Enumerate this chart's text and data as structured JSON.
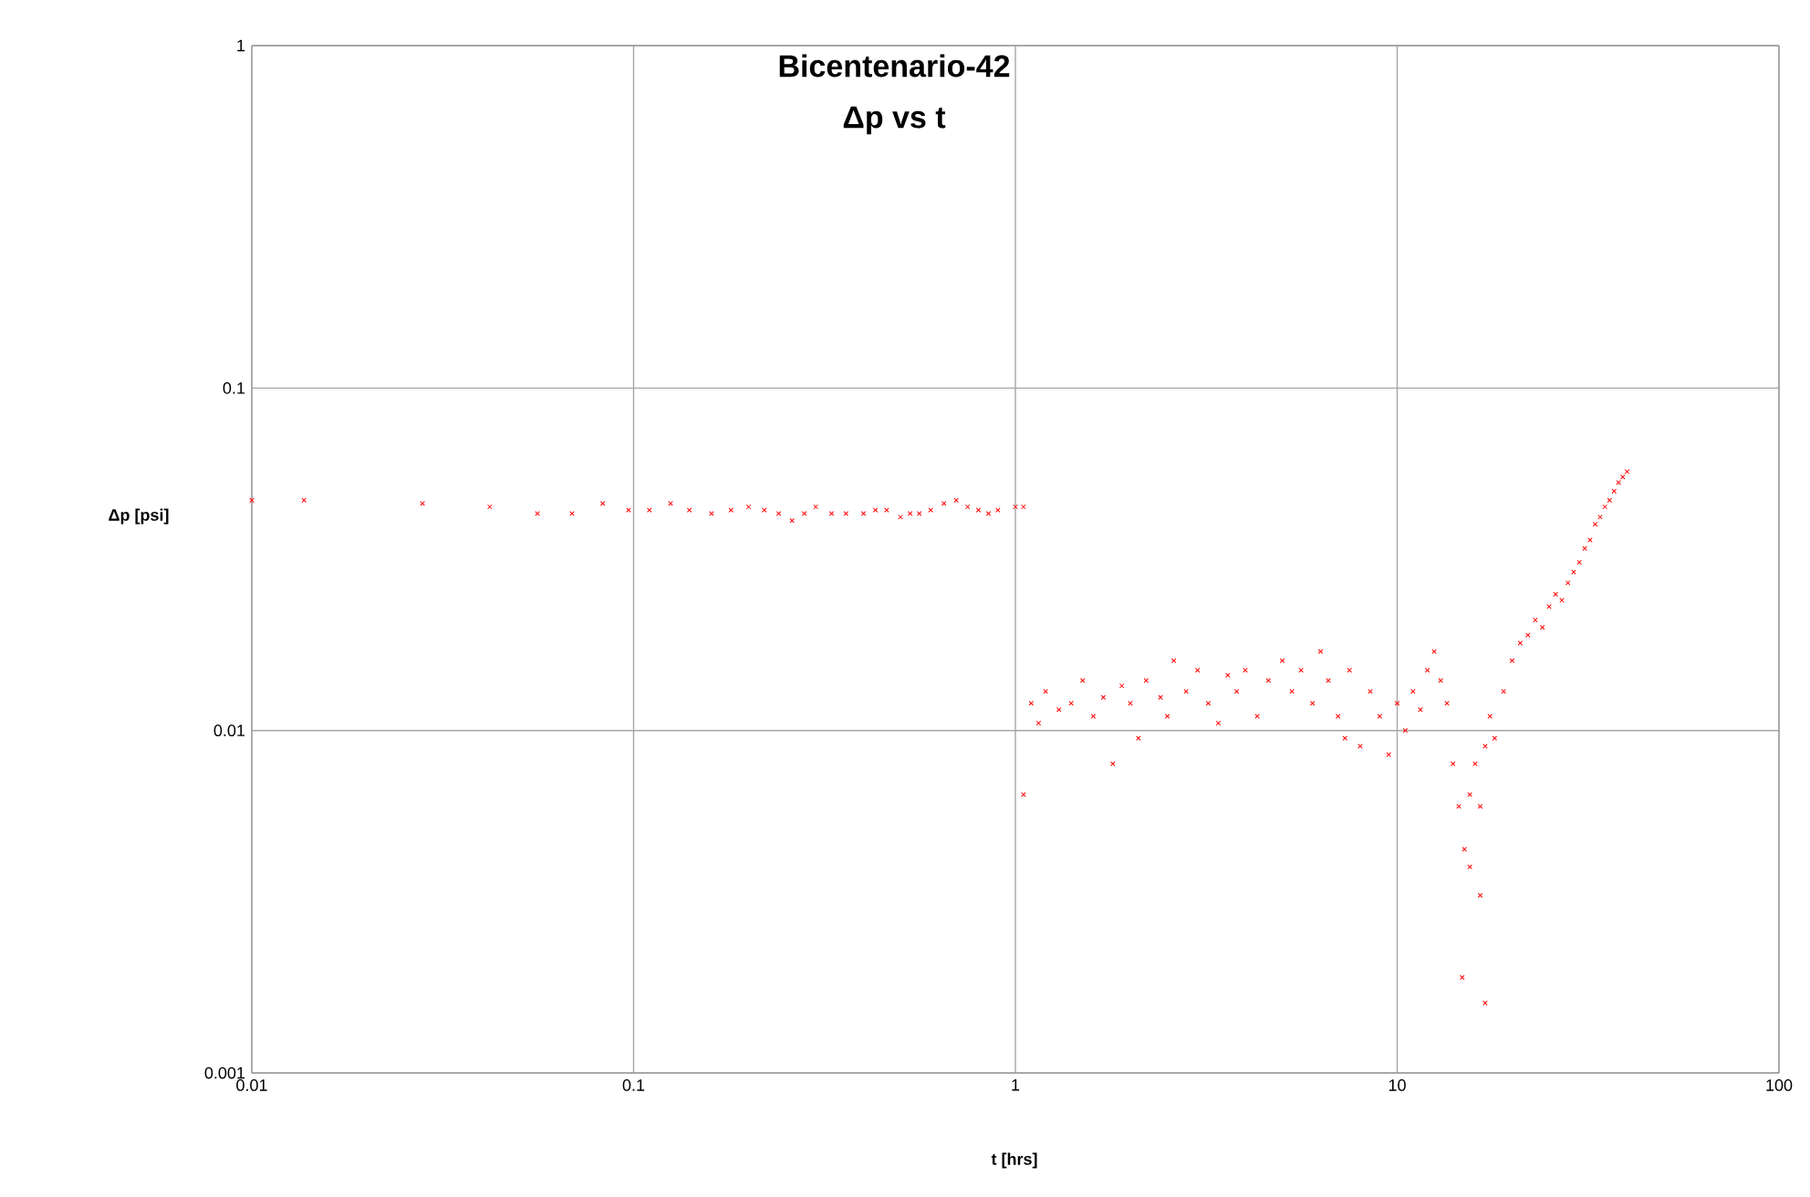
{
  "chart_data": {
    "type": "scatter",
    "title": "Bicentenario-42",
    "subtitle": "Δp vs t",
    "xlabel": "t [hrs]",
    "ylabel": "Δp [psi]",
    "log": "xy",
    "grid": true,
    "marker": "cross",
    "xlim": [
      0.01,
      100
    ],
    "ylim": [
      0.001,
      1
    ],
    "xticks": [
      0.01,
      0.1,
      1,
      10,
      100
    ],
    "yticks": [
      0.001,
      0.01,
      0.1,
      1
    ],
    "series": [
      {
        "color": "#ff0000",
        "x": [
          0.01,
          0.0137,
          0.028,
          0.042,
          0.056,
          0.069,
          0.083,
          0.097,
          0.11,
          0.125,
          0.14,
          0.16,
          0.18,
          0.2,
          0.22,
          0.24,
          0.26,
          0.28,
          0.3,
          0.33,
          0.36,
          0.4,
          0.43,
          0.46,
          0.5,
          0.53,
          0.56,
          0.6,
          0.65,
          0.7,
          0.75,
          0.8,
          0.85,
          0.9,
          1.0,
          1.05,
          1.05,
          1.1,
          1.15,
          1.2,
          1.3,
          1.4,
          1.5,
          1.6,
          1.7,
          1.8,
          1.9,
          2.0,
          2.1,
          2.2,
          2.4,
          2.5,
          2.6,
          2.8,
          3.0,
          3.2,
          3.4,
          3.6,
          3.8,
          4.0,
          4.3,
          4.6,
          5.0,
          5.3,
          5.6,
          6.0,
          6.3,
          6.6,
          7.0,
          7.3,
          7.5,
          8.0,
          8.5,
          9.0,
          9.5,
          10,
          10.5,
          11,
          11.5,
          12,
          12.5,
          13,
          13.5,
          14,
          14.5,
          14.8,
          15,
          15.5,
          15.5,
          16,
          16.5,
          16.5,
          17,
          17,
          17.5,
          18,
          19,
          20,
          21,
          22,
          23,
          24,
          25,
          26,
          27,
          28,
          29,
          30,
          31,
          32,
          33,
          34,
          35,
          36,
          37,
          38,
          39,
          40
        ],
        "values": [
          0.047,
          0.047,
          0.046,
          0.045,
          0.043,
          0.043,
          0.046,
          0.044,
          0.044,
          0.046,
          0.044,
          0.043,
          0.044,
          0.045,
          0.044,
          0.043,
          0.041,
          0.043,
          0.045,
          0.043,
          0.043,
          0.043,
          0.044,
          0.044,
          0.042,
          0.043,
          0.043,
          0.044,
          0.046,
          0.047,
          0.045,
          0.044,
          0.043,
          0.044,
          0.045,
          0.045,
          0.0065,
          0.012,
          0.0105,
          0.013,
          0.0115,
          0.012,
          0.014,
          0.011,
          0.0125,
          0.008,
          0.0135,
          0.012,
          0.0095,
          0.014,
          0.0125,
          0.011,
          0.016,
          0.013,
          0.015,
          0.012,
          0.0105,
          0.0145,
          0.013,
          0.015,
          0.011,
          0.014,
          0.016,
          0.013,
          0.015,
          0.012,
          0.017,
          0.014,
          0.011,
          0.0095,
          0.015,
          0.009,
          0.013,
          0.011,
          0.0085,
          0.012,
          0.01,
          0.013,
          0.0115,
          0.015,
          0.017,
          0.014,
          0.012,
          0.008,
          0.006,
          0.0019,
          0.0045,
          0.0065,
          0.004,
          0.008,
          0.006,
          0.0033,
          0.009,
          0.0016,
          0.011,
          0.0095,
          0.013,
          0.016,
          0.018,
          0.019,
          0.021,
          0.02,
          0.023,
          0.025,
          0.024,
          0.027,
          0.029,
          0.031,
          0.034,
          0.036,
          0.04,
          0.042,
          0.045,
          0.047,
          0.05,
          0.053,
          0.055,
          0.057
        ]
      }
    ]
  }
}
